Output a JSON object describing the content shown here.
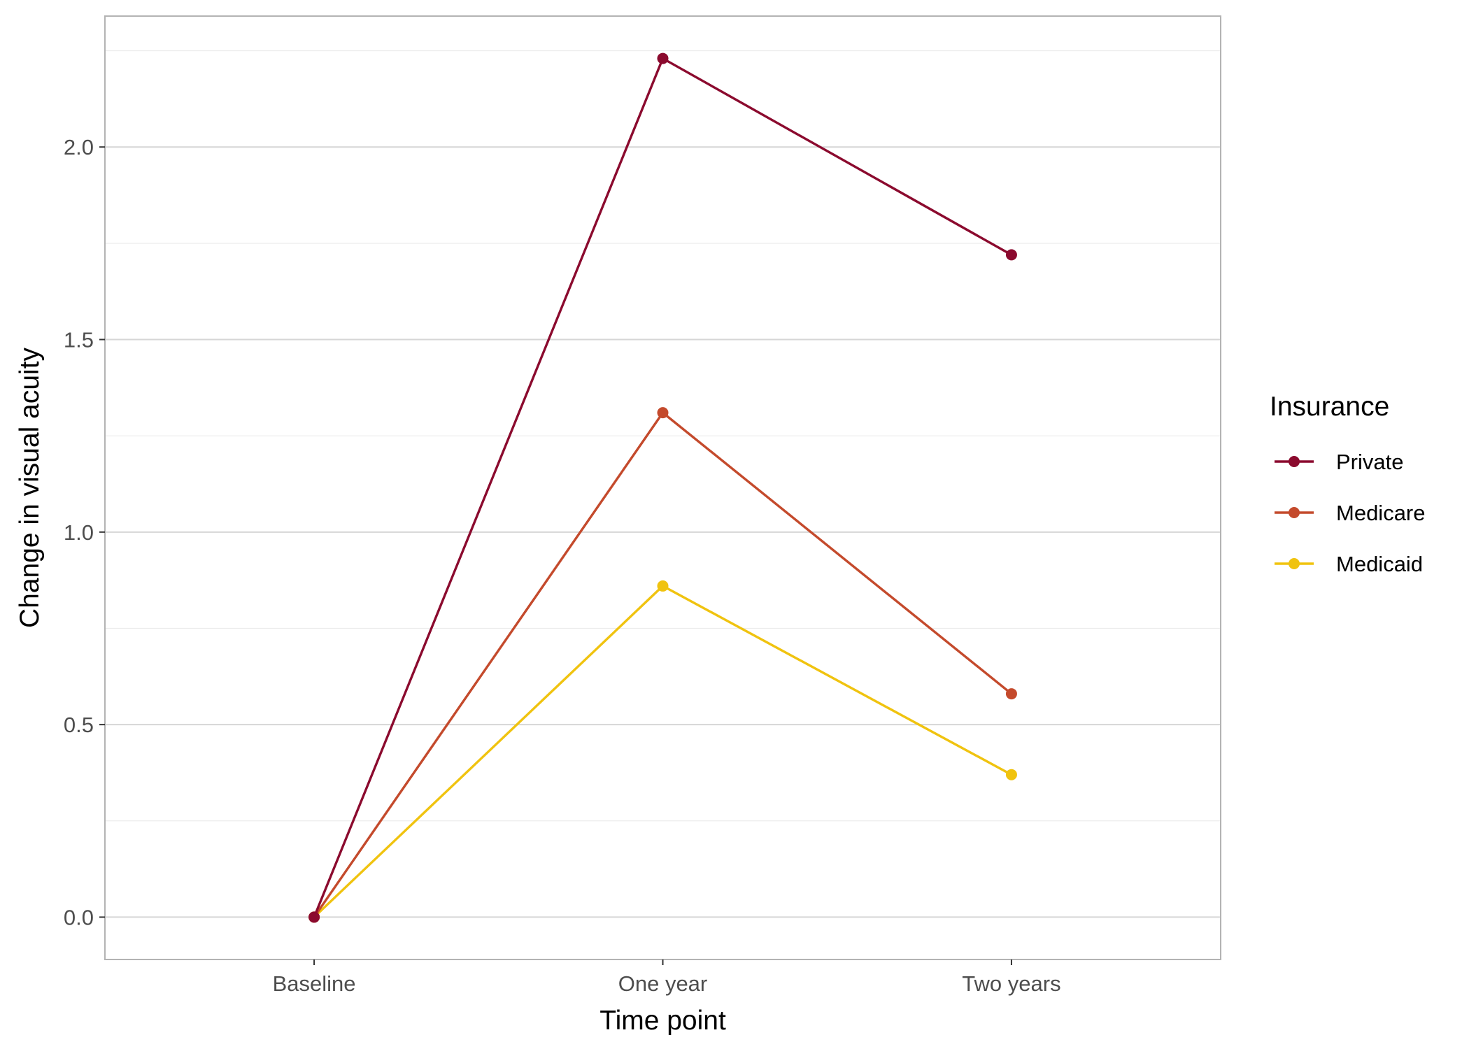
{
  "chart_data": {
    "type": "line",
    "title": "",
    "xlabel": "Time point",
    "ylabel": "Change in visual acuity",
    "categories": [
      "Baseline",
      "One year",
      "Two years"
    ],
    "ylim": [
      -0.11,
      2.34
    ],
    "yticks": [
      0.0,
      0.5,
      1.0,
      1.5,
      2.0
    ],
    "ytick_labels": [
      "0.0",
      "0.5",
      "1.0",
      "1.5",
      "2.0"
    ],
    "grid": true,
    "legend": {
      "title": "Insurance",
      "position": "right"
    },
    "series": [
      {
        "name": "Private",
        "color": "#8B0A2E",
        "values": [
          0.0,
          2.23,
          1.72
        ]
      },
      {
        "name": "Medicare",
        "color": "#C44A2C",
        "values": [
          0.0,
          1.31,
          0.58
        ]
      },
      {
        "name": "Medicaid",
        "color": "#F0C30F",
        "values": [
          0.0,
          0.86,
          0.37
        ]
      }
    ]
  }
}
